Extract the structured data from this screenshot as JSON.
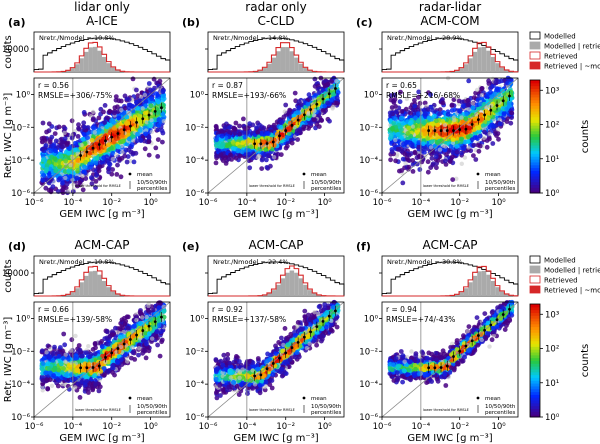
{
  "columns": [
    {
      "line1": "lidar only",
      "line2": "A-ICE"
    },
    {
      "line1": "radar only",
      "line2": "C-CLD"
    },
    {
      "line1": "radar-lidar",
      "line2": "ACM-COM"
    }
  ],
  "bottom_titles": [
    "ACM-CAP",
    "ACM-CAP",
    "ACM-CAP"
  ],
  "panels": [
    {
      "letter": "(a)",
      "r": "r = 0.56",
      "rmsle": "RMSLE=+306/-75%",
      "ratio_pct": "10.8%"
    },
    {
      "letter": "(b)",
      "r": "r = 0.87",
      "rmsle": "RMSLE=+193/-66%",
      "ratio_pct": "14.8%"
    },
    {
      "letter": "(c)",
      "r": "r = 0.65",
      "rmsle": "RMSLE=+216/-68%",
      "ratio_pct": "28.9%"
    },
    {
      "letter": "(d)",
      "r": "r = 0.66",
      "rmsle": "RMSLE=+139/-58%",
      "ratio_pct": "10.8%"
    },
    {
      "letter": "(e)",
      "r": "r = 0.92",
      "rmsle": "RMSLE=+137/-58%",
      "ratio_pct": "22.4%"
    },
    {
      "letter": "(f)",
      "r": "r = 0.94",
      "rmsle": "RMSLE=+74/-43%",
      "ratio_pct": "30.8%"
    }
  ],
  "labels": {
    "counts": "counts",
    "ylabel": "Retr. IWC [g m⁻³]",
    "xlabel": "GEM IWC [g m⁻³]",
    "hist_tick": "10000",
    "ratio_prefix": "N",
    "mean": "mean",
    "percentiles_1": "10/50/90th",
    "percentiles_2": "percentiles",
    "lower_threshold": "lower threshold for RMSLE"
  },
  "legend": [
    "Modelled",
    "Modelled | retrieved",
    "Retrieved",
    "Retrieved | ~modelled"
  ],
  "colorbar": {
    "label": "counts",
    "ticks": [
      "10⁰",
      "10¹",
      "10²",
      "10³"
    ]
  },
  "ticks": {
    "x": [
      "10⁻⁶",
      "10⁻⁴",
      "10⁻²",
      "10⁰"
    ],
    "y": [
      "10⁻⁶",
      "10⁻⁴",
      "10⁻²",
      "10⁰"
    ]
  },
  "colors": {
    "modelled": "#000000",
    "retrieved": "#d62728",
    "shade": "#aaaaaa"
  }
}
